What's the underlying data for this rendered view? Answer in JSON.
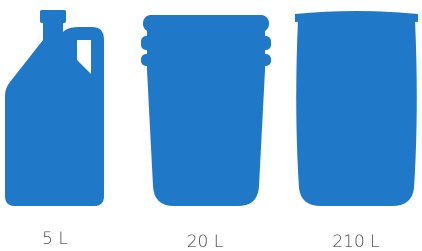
{
  "containers": [
    {
      "label": "5 L"
    },
    {
      "label": "20 L"
    },
    {
      "label": "210 L"
    }
  ]
}
